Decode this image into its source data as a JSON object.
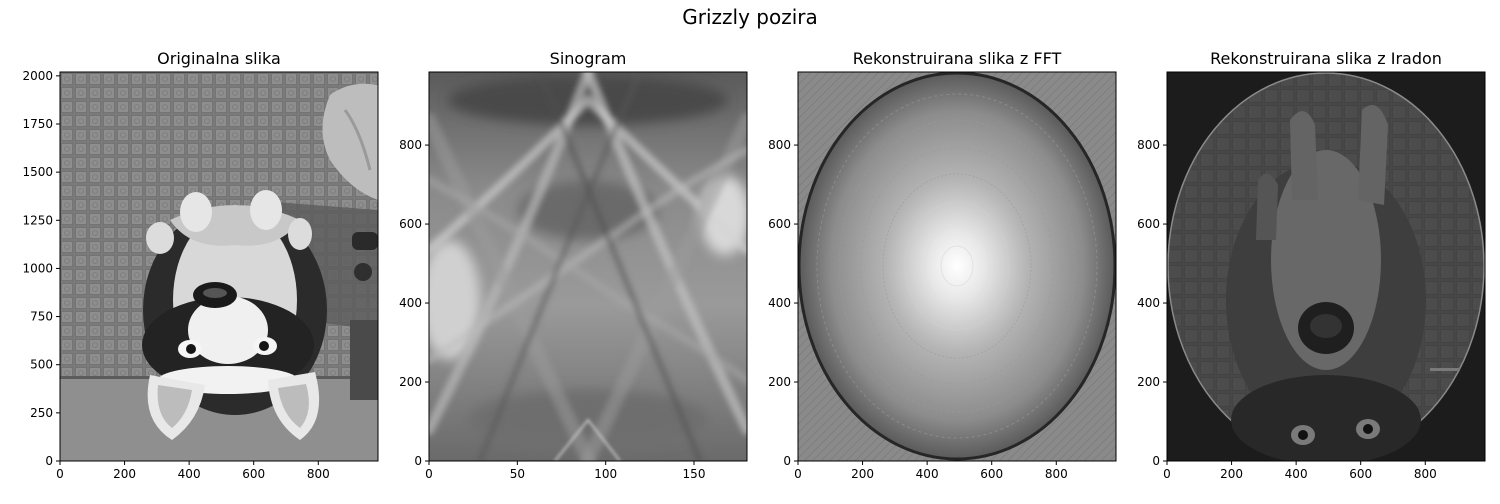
{
  "figure": {
    "title": "Grizzly pozira"
  },
  "chart_data": [
    {
      "type": "image",
      "title": "Originalna slika",
      "xlim": [
        0,
        985
      ],
      "ylim": [
        0,
        2020
      ],
      "xticks": [
        0,
        200,
        400,
        600,
        800
      ],
      "yticks": [
        0,
        250,
        500,
        750,
        1000,
        1250,
        1500,
        1750,
        2000
      ],
      "content": "grayscale photo of husky dog lying upside down on tiled floor"
    },
    {
      "type": "image",
      "title": "Sinogram",
      "xlim": [
        0,
        180
      ],
      "ylim": [
        0,
        985
      ],
      "xticks": [
        0,
        50,
        100,
        150
      ],
      "yticks": [
        0,
        200,
        400,
        600,
        800
      ],
      "content": "grayscale sinogram with crossing diagonal bands"
    },
    {
      "type": "image",
      "title": "Rekonstruirana slika z FFT",
      "xlim": [
        0,
        985
      ],
      "ylim": [
        0,
        985
      ],
      "xticks": [
        0,
        200,
        400,
        600,
        800
      ],
      "yticks": [
        0,
        200,
        400,
        600,
        800
      ],
      "content": "bright concentric rings inside dark elliptical boundary"
    },
    {
      "type": "image",
      "title": "Rekonstruirana slika z Iradon",
      "xlim": [
        0,
        985
      ],
      "ylim": [
        0,
        985
      ],
      "xticks": [
        0,
        200,
        400,
        600,
        800
      ],
      "yticks": [
        0,
        200,
        400,
        600,
        800
      ],
      "content": "dim reconstruction of dog inside ellipse on black background"
    }
  ]
}
